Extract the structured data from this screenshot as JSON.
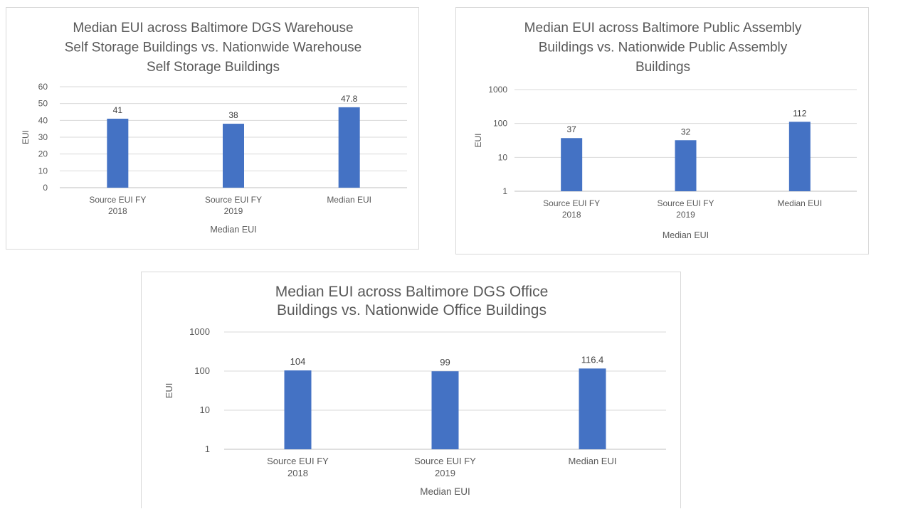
{
  "chart_data": [
    {
      "type": "bar",
      "title_lines": [
        "Median EUI across Baltimore DGS Warehouse",
        "Self Storage Buildings vs. Nationwide Warehouse",
        "Self Storage Buildings"
      ],
      "categories": [
        [
          "Source EUI FY",
          "2018"
        ],
        [
          "Source EUI FY",
          "2019"
        ],
        [
          "Median EUI"
        ]
      ],
      "values": [
        41,
        38,
        47.8
      ],
      "data_labels": [
        "41",
        "38",
        "47.8"
      ],
      "xlabel": "Median EUI",
      "ylabel": "EUI",
      "yscale": "linear",
      "ylim": [
        0,
        60
      ],
      "yticks": [
        "0",
        "10",
        "20",
        "30",
        "40",
        "50",
        "60"
      ],
      "grid": true,
      "legend": "none",
      "bar_color": "#4472c4"
    },
    {
      "type": "bar",
      "title_lines": [
        "Median EUI across Baltimore Public Assembly",
        "Buildings vs. Nationwide Public Assembly",
        "Buildings"
      ],
      "categories": [
        [
          "Source EUI FY",
          "2018"
        ],
        [
          "Source EUI FY",
          "2019"
        ],
        [
          "Median EUI"
        ]
      ],
      "values": [
        37,
        32,
        112
      ],
      "data_labels": [
        "37",
        "32",
        "112"
      ],
      "xlabel": "Median EUI",
      "ylabel": "EUI",
      "yscale": "log",
      "ylim": [
        1,
        1000
      ],
      "yticks": [
        "1",
        "10",
        "100",
        "1000"
      ],
      "grid": true,
      "legend": "none",
      "bar_color": "#4472c4"
    },
    {
      "type": "bar",
      "title_lines": [
        "Median EUI across Baltimore DGS Office",
        "Buildings vs. Nationwide Office Buildings"
      ],
      "categories": [
        [
          "Source EUI FY",
          "2018"
        ],
        [
          "Source EUI FY",
          "2019"
        ],
        [
          "Median EUI"
        ]
      ],
      "values": [
        104,
        99,
        116.4
      ],
      "data_labels": [
        "104",
        "99",
        "116.4"
      ],
      "xlabel": "Median EUI",
      "ylabel": "EUI",
      "yscale": "log",
      "ylim": [
        1,
        1000
      ],
      "yticks": [
        "1",
        "10",
        "100",
        "1000"
      ],
      "grid": true,
      "legend": "none",
      "bar_color": "#4472c4"
    }
  ]
}
